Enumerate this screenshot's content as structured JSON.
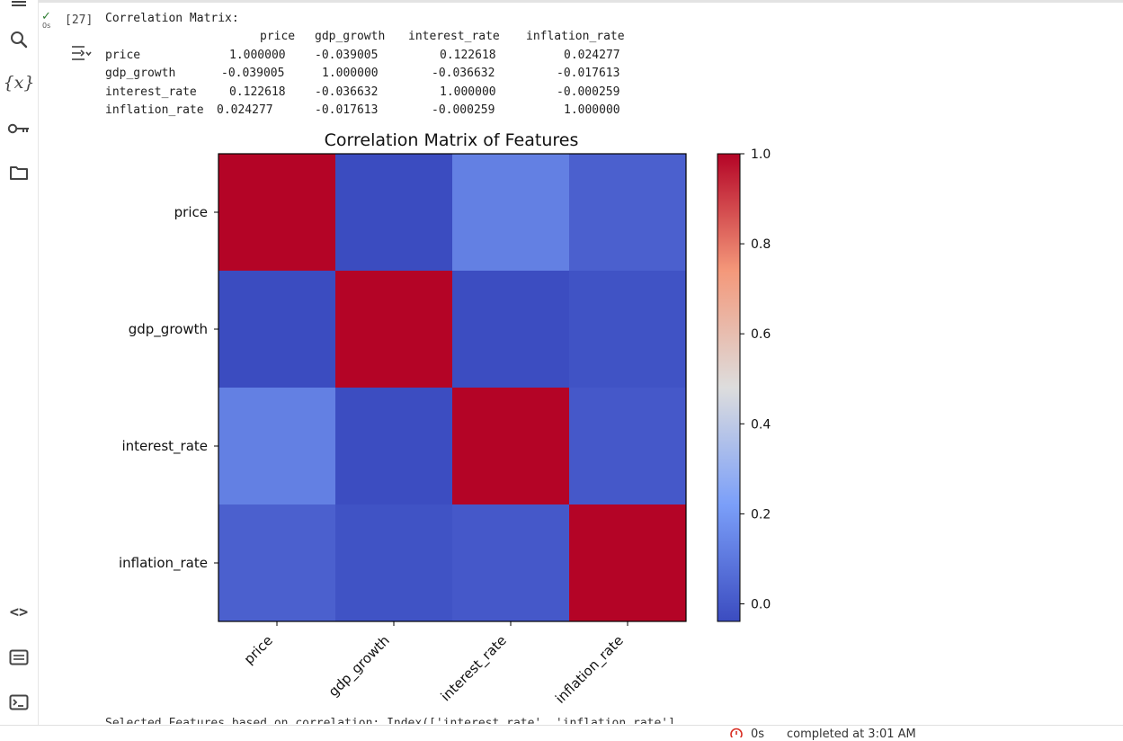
{
  "sidebar": {
    "items": [
      {
        "name": "table-of-contents-icon"
      },
      {
        "name": "search-icon"
      },
      {
        "name": "variables-icon",
        "glyph": "{x}"
      },
      {
        "name": "secrets-key-icon"
      },
      {
        "name": "files-folder-icon"
      },
      {
        "name": "code-snippets-icon",
        "glyph": "<>"
      },
      {
        "name": "command-palette-icon"
      },
      {
        "name": "terminal-icon"
      }
    ]
  },
  "cell": {
    "status_icon": "check-icon",
    "status_color": "#2e7d32",
    "exec_time": "0s",
    "exec_count": "[27]"
  },
  "output": {
    "title": "Correlation Matrix:",
    "columns": [
      "price",
      "gdp_growth",
      "interest_rate",
      "inflation_rate"
    ],
    "rows": [
      {
        "label": "price",
        "values": [
          "1.000000",
          "-0.039005",
          "0.122618",
          "0.024277"
        ]
      },
      {
        "label": "gdp_growth",
        "values": [
          "-0.039005",
          "1.000000",
          "-0.036632",
          "-0.017613"
        ]
      },
      {
        "label": "interest_rate",
        "values": [
          "0.122618",
          "-0.036632",
          "1.000000",
          "-0.000259"
        ]
      },
      {
        "label": "inflation_rate",
        "values": [
          "0.024277",
          "-0.017613",
          "-0.000259",
          "1.000000"
        ]
      }
    ],
    "footer_partial": "Selected Features based on correlation: Index(['interest_rate', 'inflation_rate'],"
  },
  "chart_data": {
    "type": "heatmap",
    "title": "Correlation Matrix of Features",
    "x_categories": [
      "price",
      "gdp_growth",
      "interest_rate",
      "inflation_rate"
    ],
    "y_categories": [
      "price",
      "gdp_growth",
      "interest_rate",
      "inflation_rate"
    ],
    "values": [
      [
        1.0,
        -0.039005,
        0.122618,
        0.024277
      ],
      [
        -0.039005,
        1.0,
        -0.036632,
        -0.017613
      ],
      [
        0.122618,
        -0.036632,
        1.0,
        -0.000259
      ],
      [
        0.024277,
        -0.017613,
        -0.000259,
        1.0
      ]
    ],
    "colormap": "coolwarm",
    "colorbar_ticks": [
      "0.0",
      "0.2",
      "0.4",
      "0.6",
      "0.8",
      "1.0"
    ],
    "colorbar_range": [
      -0.039005,
      1.0
    ]
  },
  "statusbar": {
    "icon": "error-circle-icon",
    "icon_color": "#d93025",
    "duration": "0s",
    "text": "completed at 3:01 AM"
  }
}
